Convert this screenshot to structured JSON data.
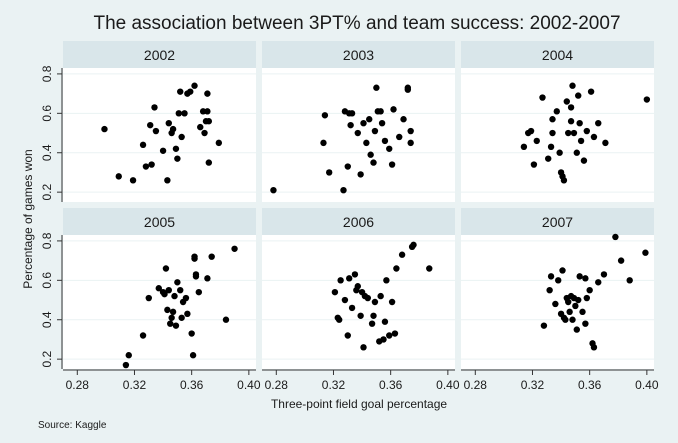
{
  "chart_data": {
    "type": "scatter",
    "title": "The association between 3PT% and team success: 2002-2007",
    "xlabel": "Three-point field goal percentage",
    "ylabel": "Percentage of games won",
    "source": "Source: Kaggle",
    "xlim": [
      0.27,
      0.405
    ],
    "ylim": [
      0.15,
      0.83
    ],
    "xticks": [
      0.28,
      0.32,
      0.36,
      0.4
    ],
    "xtick_labels": [
      "0.28",
      "0.32",
      "0.36",
      "0.40"
    ],
    "yticks": [
      0.2,
      0.4,
      0.6,
      0.8
    ],
    "ytick_labels": [
      "0.2",
      "0.4",
      "0.6",
      "0.8"
    ],
    "grid": true,
    "colors": {
      "background": "#eaf2f3",
      "panel": "#ffffff",
      "strip": "#d9e6ea",
      "grid": "#eaf2f3",
      "marker": "#000000"
    },
    "panels": [
      {
        "label": "2002",
        "points": [
          [
            0.299,
            0.52
          ],
          [
            0.309,
            0.28
          ],
          [
            0.319,
            0.26
          ],
          [
            0.326,
            0.44
          ],
          [
            0.328,
            0.33
          ],
          [
            0.331,
            0.54
          ],
          [
            0.332,
            0.34
          ],
          [
            0.334,
            0.63
          ],
          [
            0.335,
            0.51
          ],
          [
            0.34,
            0.41
          ],
          [
            0.343,
            0.26
          ],
          [
            0.344,
            0.55
          ],
          [
            0.346,
            0.5
          ],
          [
            0.347,
            0.52
          ],
          [
            0.349,
            0.42
          ],
          [
            0.35,
            0.37
          ],
          [
            0.351,
            0.6
          ],
          [
            0.352,
            0.71
          ],
          [
            0.353,
            0.48
          ],
          [
            0.355,
            0.6
          ],
          [
            0.357,
            0.7
          ],
          [
            0.359,
            0.71
          ],
          [
            0.362,
            0.74
          ],
          [
            0.366,
            0.53
          ],
          [
            0.368,
            0.61
          ],
          [
            0.369,
            0.5
          ],
          [
            0.37,
            0.56
          ],
          [
            0.371,
            0.7
          ],
          [
            0.371,
            0.61
          ],
          [
            0.372,
            0.56
          ],
          [
            0.372,
            0.35
          ],
          [
            0.379,
            0.45
          ]
        ]
      },
      {
        "label": "2003",
        "points": [
          [
            0.278,
            0.21
          ],
          [
            0.314,
            0.59
          ],
          [
            0.313,
            0.45
          ],
          [
            0.317,
            0.3
          ],
          [
            0.327,
            0.21
          ],
          [
            0.328,
            0.61
          ],
          [
            0.33,
            0.33
          ],
          [
            0.331,
            0.6
          ],
          [
            0.332,
            0.54
          ],
          [
            0.333,
            0.6
          ],
          [
            0.337,
            0.5
          ],
          [
            0.339,
            0.29
          ],
          [
            0.341,
            0.55
          ],
          [
            0.343,
            0.45
          ],
          [
            0.345,
            0.57
          ],
          [
            0.346,
            0.39
          ],
          [
            0.348,
            0.35
          ],
          [
            0.349,
            0.51
          ],
          [
            0.35,
            0.73
          ],
          [
            0.351,
            0.61
          ],
          [
            0.353,
            0.61
          ],
          [
            0.354,
            0.55
          ],
          [
            0.356,
            0.46
          ],
          [
            0.359,
            0.42
          ],
          [
            0.361,
            0.34
          ],
          [
            0.362,
            0.62
          ],
          [
            0.366,
            0.48
          ],
          [
            0.369,
            0.57
          ],
          [
            0.372,
            0.72
          ],
          [
            0.372,
            0.73
          ],
          [
            0.374,
            0.51
          ],
          [
            0.374,
            0.45
          ]
        ]
      },
      {
        "label": "2004",
        "points": [
          [
            0.314,
            0.43
          ],
          [
            0.317,
            0.5
          ],
          [
            0.319,
            0.51
          ],
          [
            0.321,
            0.34
          ],
          [
            0.323,
            0.46
          ],
          [
            0.327,
            0.68
          ],
          [
            0.331,
            0.37
          ],
          [
            0.333,
            0.43
          ],
          [
            0.334,
            0.57
          ],
          [
            0.334,
            0.5
          ],
          [
            0.337,
            0.61
          ],
          [
            0.339,
            0.4
          ],
          [
            0.34,
            0.3
          ],
          [
            0.341,
            0.28
          ],
          [
            0.342,
            0.26
          ],
          [
            0.344,
            0.66
          ],
          [
            0.345,
            0.5
          ],
          [
            0.347,
            0.63
          ],
          [
            0.348,
            0.74
          ],
          [
            0.349,
            0.5
          ],
          [
            0.351,
            0.4
          ],
          [
            0.352,
            0.69
          ],
          [
            0.353,
            0.55
          ],
          [
            0.354,
            0.46
          ],
          [
            0.356,
            0.36
          ],
          [
            0.358,
            0.51
          ],
          [
            0.361,
            0.71
          ],
          [
            0.363,
            0.48
          ],
          [
            0.366,
            0.55
          ],
          [
            0.371,
            0.45
          ],
          [
            0.4,
            0.67
          ],
          [
            0.347,
            0.56
          ]
        ]
      },
      {
        "label": "2005",
        "points": [
          [
            0.314,
            0.17
          ],
          [
            0.316,
            0.22
          ],
          [
            0.326,
            0.32
          ],
          [
            0.33,
            0.51
          ],
          [
            0.337,
            0.56
          ],
          [
            0.34,
            0.54
          ],
          [
            0.341,
            0.53
          ],
          [
            0.342,
            0.66
          ],
          [
            0.343,
            0.45
          ],
          [
            0.344,
            0.55
          ],
          [
            0.345,
            0.38
          ],
          [
            0.346,
            0.41
          ],
          [
            0.347,
            0.44
          ],
          [
            0.348,
            0.52
          ],
          [
            0.349,
            0.37
          ],
          [
            0.35,
            0.59
          ],
          [
            0.352,
            0.55
          ],
          [
            0.354,
            0.49
          ],
          [
            0.356,
            0.51
          ],
          [
            0.357,
            0.43
          ],
          [
            0.36,
            0.33
          ],
          [
            0.361,
            0.22
          ],
          [
            0.362,
            0.72
          ],
          [
            0.362,
            0.71
          ],
          [
            0.363,
            0.62
          ],
          [
            0.363,
            0.63
          ],
          [
            0.365,
            0.54
          ],
          [
            0.371,
            0.61
          ],
          [
            0.374,
            0.72
          ],
          [
            0.384,
            0.4
          ],
          [
            0.39,
            0.76
          ],
          [
            0.353,
            0.41
          ]
        ]
      },
      {
        "label": "2006",
        "points": [
          [
            0.321,
            0.54
          ],
          [
            0.323,
            0.41
          ],
          [
            0.324,
            0.4
          ],
          [
            0.325,
            0.6
          ],
          [
            0.328,
            0.5
          ],
          [
            0.33,
            0.32
          ],
          [
            0.331,
            0.61
          ],
          [
            0.333,
            0.46
          ],
          [
            0.335,
            0.63
          ],
          [
            0.336,
            0.55
          ],
          [
            0.337,
            0.57
          ],
          [
            0.339,
            0.42
          ],
          [
            0.34,
            0.54
          ],
          [
            0.341,
            0.26
          ],
          [
            0.342,
            0.52
          ],
          [
            0.344,
            0.51
          ],
          [
            0.347,
            0.38
          ],
          [
            0.348,
            0.42
          ],
          [
            0.349,
            0.49
          ],
          [
            0.352,
            0.29
          ],
          [
            0.353,
            0.52
          ],
          [
            0.355,
            0.3
          ],
          [
            0.356,
            0.39
          ],
          [
            0.357,
            0.6
          ],
          [
            0.359,
            0.32
          ],
          [
            0.361,
            0.49
          ],
          [
            0.363,
            0.33
          ],
          [
            0.364,
            0.66
          ],
          [
            0.368,
            0.73
          ],
          [
            0.375,
            0.77
          ],
          [
            0.376,
            0.78
          ],
          [
            0.387,
            0.66
          ]
        ]
      },
      {
        "label": "2007",
        "points": [
          [
            0.328,
            0.37
          ],
          [
            0.332,
            0.55
          ],
          [
            0.333,
            0.62
          ],
          [
            0.336,
            0.48
          ],
          [
            0.338,
            0.6
          ],
          [
            0.34,
            0.43
          ],
          [
            0.341,
            0.65
          ],
          [
            0.342,
            0.41
          ],
          [
            0.343,
            0.4
          ],
          [
            0.344,
            0.51
          ],
          [
            0.345,
            0.49
          ],
          [
            0.346,
            0.44
          ],
          [
            0.347,
            0.52
          ],
          [
            0.348,
            0.4
          ],
          [
            0.349,
            0.51
          ],
          [
            0.35,
            0.47
          ],
          [
            0.351,
            0.35
          ],
          [
            0.352,
            0.5
          ],
          [
            0.353,
            0.62
          ],
          [
            0.355,
            0.44
          ],
          [
            0.357,
            0.61
          ],
          [
            0.358,
            0.51
          ],
          [
            0.36,
            0.55
          ],
          [
            0.362,
            0.28
          ],
          [
            0.363,
            0.26
          ],
          [
            0.366,
            0.59
          ],
          [
            0.37,
            0.63
          ],
          [
            0.378,
            0.82
          ],
          [
            0.382,
            0.7
          ],
          [
            0.388,
            0.6
          ],
          [
            0.399,
            0.74
          ],
          [
            0.357,
            0.38
          ]
        ]
      }
    ]
  }
}
